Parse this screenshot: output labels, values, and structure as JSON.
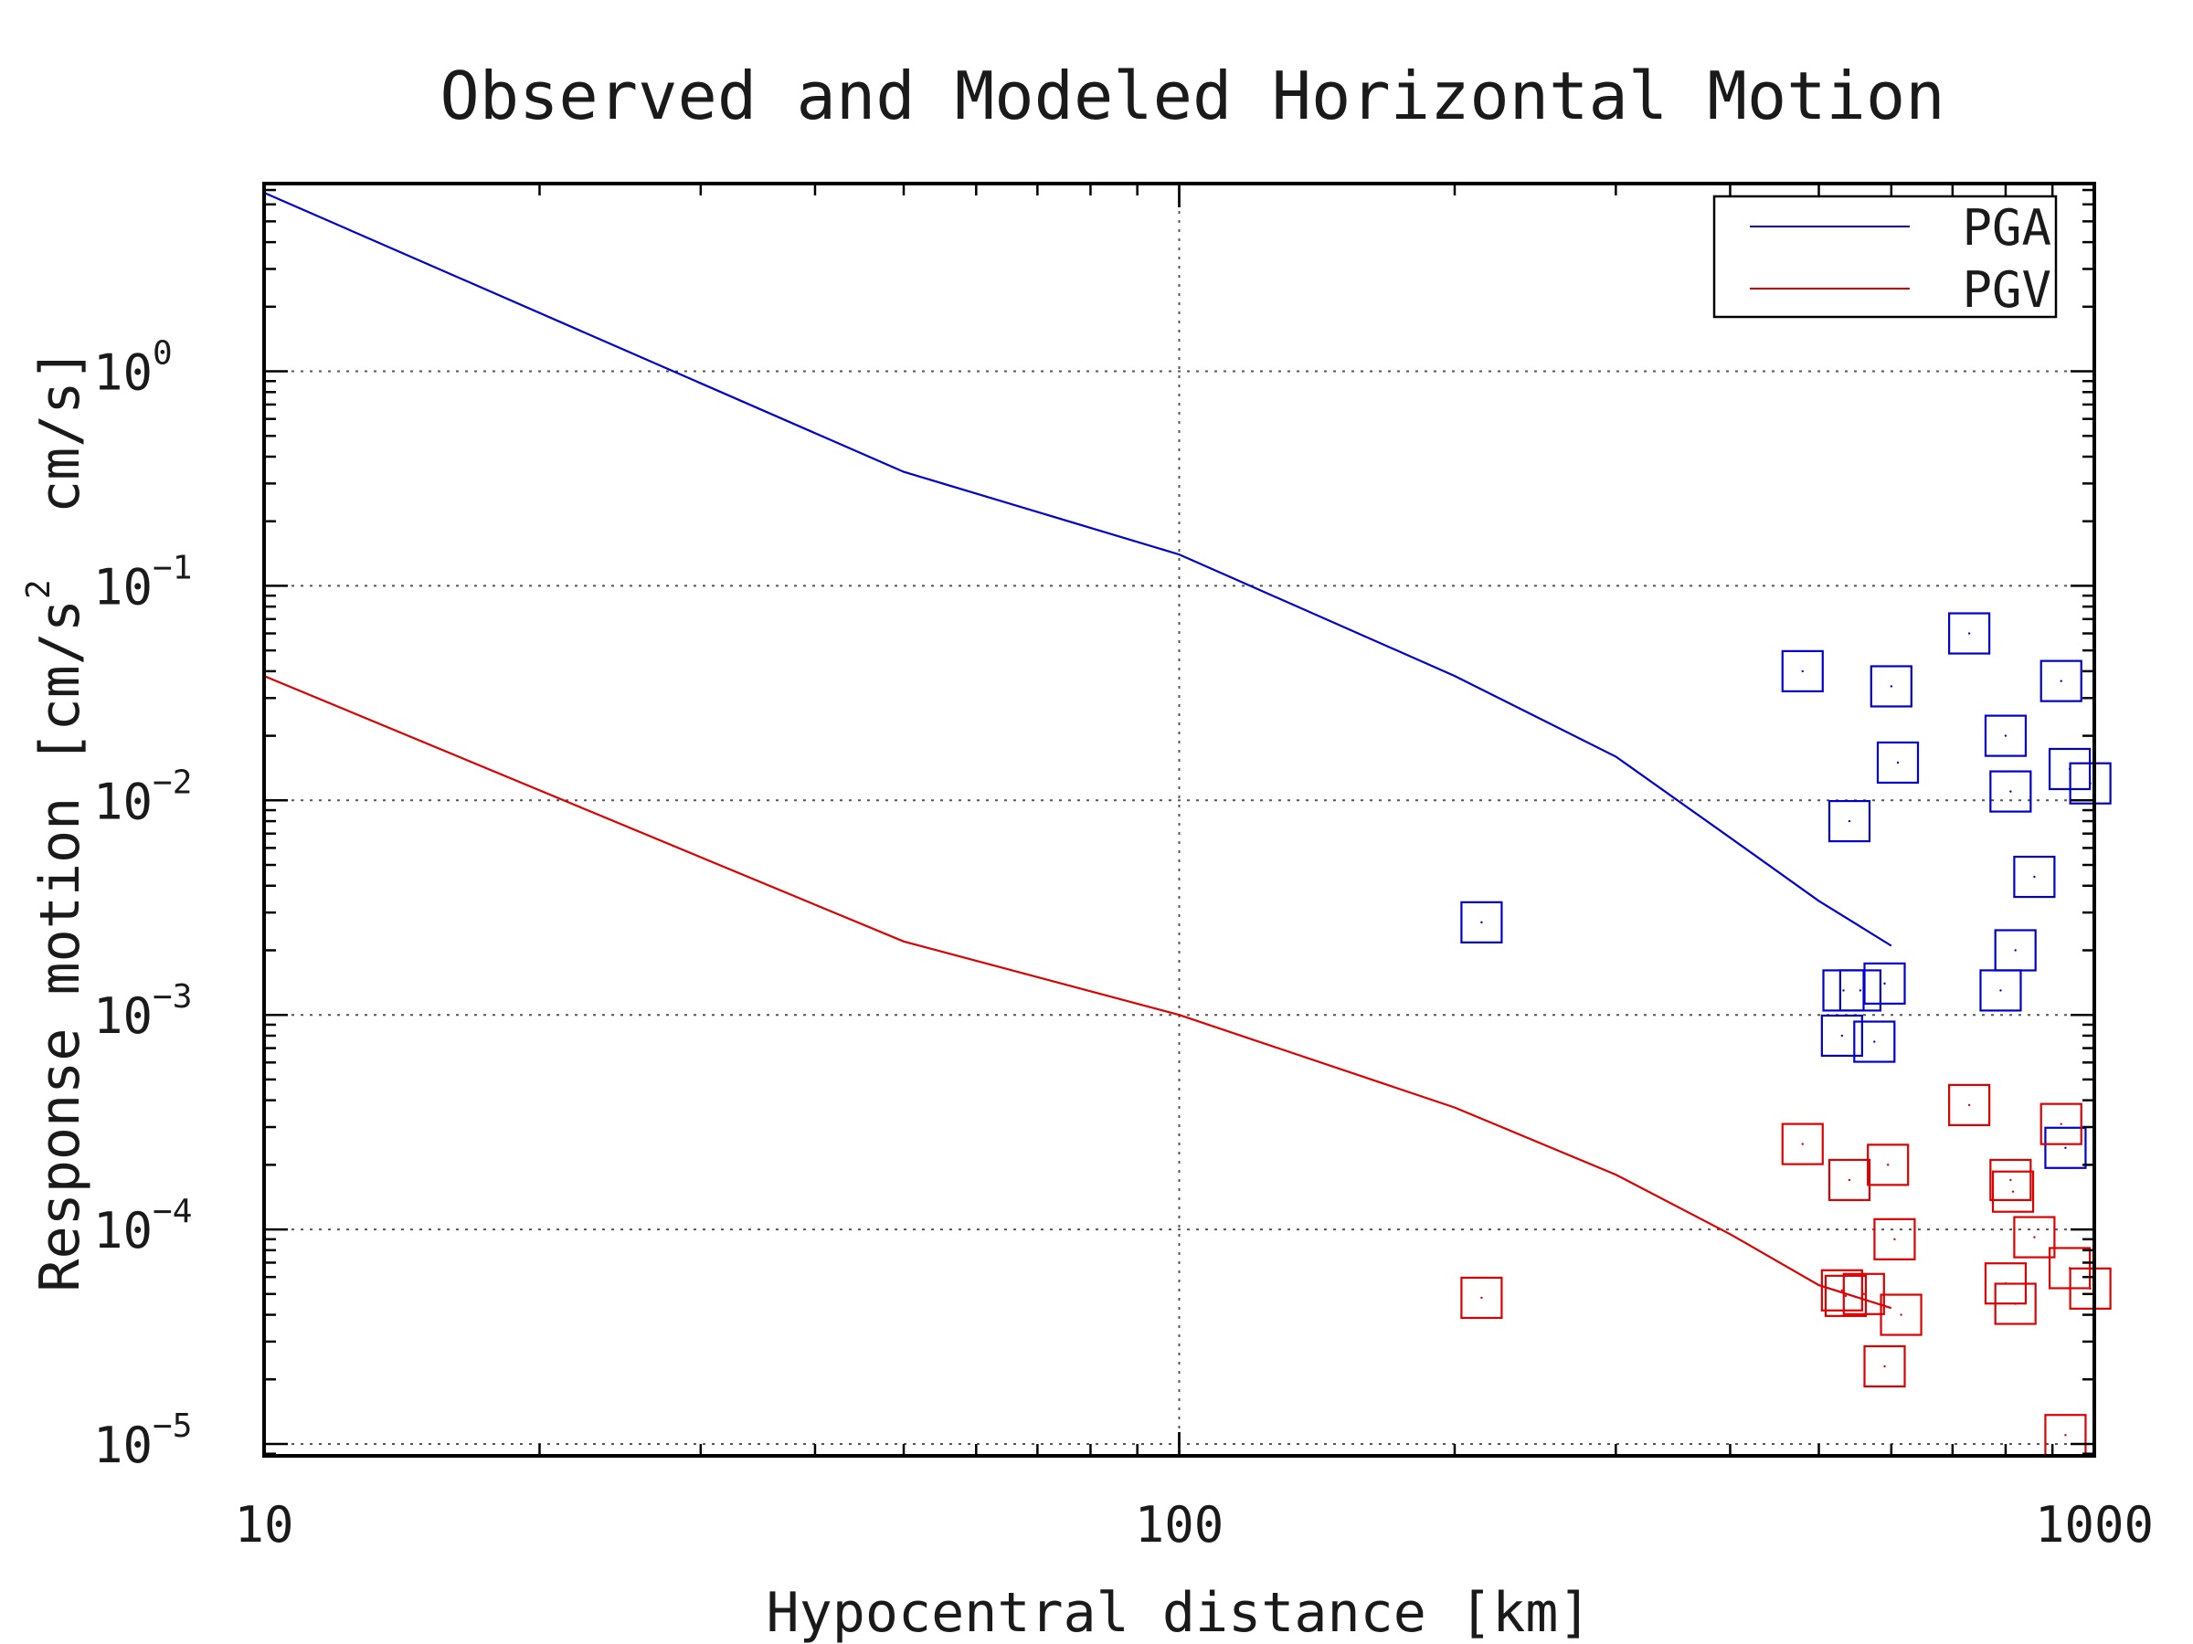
{
  "chart_data": {
    "type": "line",
    "title": "Observed and Modeled Horizontal Motion",
    "xlabel": "Hypocentral distance [km]",
    "ylabel": "Response motion [cm/s² cm/s]",
    "ylabel_parts": {
      "before": "Response motion [cm/s",
      "sup": "2",
      "after": "  cm/s]"
    },
    "x_scale": "log",
    "y_scale": "log",
    "xlim": [
      10,
      1000
    ],
    "ylim": [
      8.8e-06,
      7.5
    ],
    "x_ticks": [
      {
        "value": 10,
        "label": "10"
      },
      {
        "value": 100,
        "label": "100"
      },
      {
        "value": 1000,
        "label": "1000"
      }
    ],
    "y_ticks": [
      {
        "value": 1,
        "base": "10",
        "exp": "0"
      },
      {
        "value": 0.1,
        "base": "10",
        "exp": "−1"
      },
      {
        "value": 0.01,
        "base": "10",
        "exp": "−2"
      },
      {
        "value": 0.001,
        "base": "10",
        "exp": "−3"
      },
      {
        "value": 0.0001,
        "base": "10",
        "exp": "−4"
      },
      {
        "value": 1e-05,
        "base": "10",
        "exp": "−5"
      }
    ],
    "grid": true,
    "legend_position": "top-right",
    "series": [
      {
        "name": "PGA",
        "color": "#0000cc",
        "model": {
          "x": [
            10,
            50,
            100,
            200,
            300,
            400,
            500,
            600
          ],
          "y": [
            6.8,
            0.34,
            0.14,
            0.038,
            0.016,
            0.0067,
            0.0034,
            0.0021
          ]
        },
        "observed": {
          "x": [
            214,
            480,
            530,
            532,
            540,
            555,
            575,
            590,
            600,
            610,
            730,
            790,
            800,
            810,
            820,
            860,
            920,
            930,
            940,
            990
          ],
          "y": [
            0.0027,
            0.04,
            0.0008,
            0.0013,
            0.008,
            0.0013,
            0.00075,
            0.0014,
            0.034,
            0.015,
            0.06,
            0.0013,
            0.02,
            0.011,
            0.002,
            0.0044,
            0.036,
            0.00024,
            0.014,
            0.012
          ]
        }
      },
      {
        "name": "PGV",
        "color": "#dd0000",
        "model": {
          "x": [
            10,
            50,
            100,
            200,
            300,
            400,
            500,
            600
          ],
          "y": [
            0.038,
            0.0022,
            0.001,
            0.00037,
            0.00018,
            9.5e-05,
            5.5e-05,
            4.3e-05
          ]
        },
        "observed": {
          "x": [
            214,
            480,
            530,
            535,
            540,
            560,
            590,
            595,
            605,
            615,
            730,
            800,
            810,
            815,
            820,
            860,
            920,
            930,
            940,
            990
          ],
          "y": [
            4.8e-05,
            0.00025,
            5.2e-05,
            4.9e-05,
            0.00017,
            5e-05,
            2.3e-05,
            0.0002,
            9e-05,
            4e-05,
            0.00038,
            5.6e-05,
            0.00017,
            0.00015,
            4.5e-05,
            9.2e-05,
            0.00031,
            1.1e-05,
            6.6e-05,
            5.3e-05
          ]
        }
      }
    ]
  }
}
